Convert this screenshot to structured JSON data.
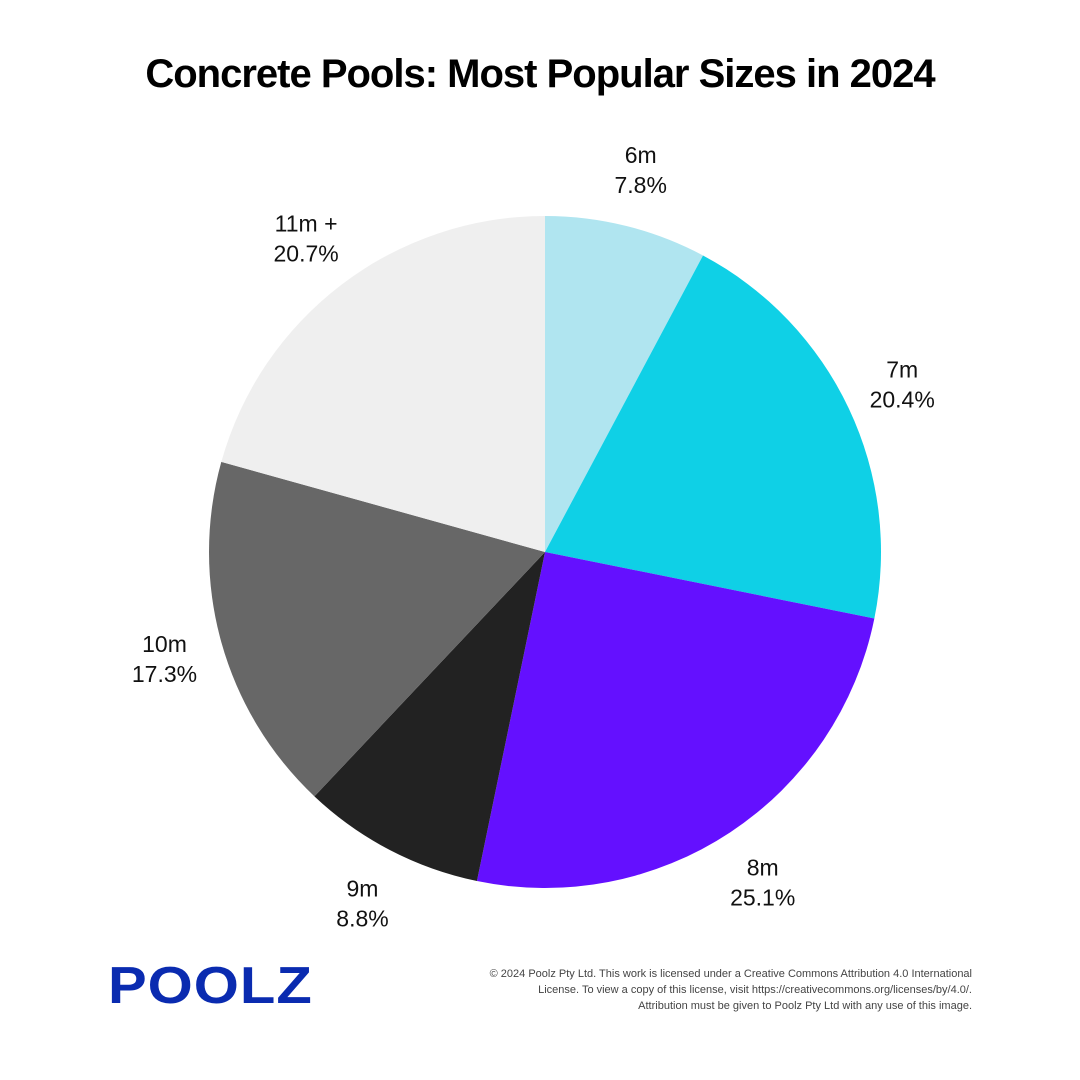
{
  "chart_data": {
    "type": "pie",
    "title": "Concrete Pools: Most Popular Sizes in 2024",
    "slices": [
      {
        "label": "6m",
        "value": 7.8,
        "value_label": "7.8%",
        "color": "#b0e5f0"
      },
      {
        "label": "7m",
        "value": 20.4,
        "value_label": "20.4%",
        "color": "#0fd0e6"
      },
      {
        "label": "8m",
        "value": 25.1,
        "value_label": "25.1%",
        "color": "#6410ff"
      },
      {
        "label": "9m",
        "value": 8.8,
        "value_label": "8.8%",
        "color": "#222222"
      },
      {
        "label": "10m",
        "value": 17.3,
        "value_label": "17.3%",
        "color": "#676767"
      },
      {
        "label": "11m +",
        "value": 20.7,
        "value_label": "20.7%",
        "color": "#efefef"
      }
    ],
    "start": "12 o'clock",
    "direction": "clockwise"
  },
  "footer": {
    "logo_text": "POOLZ",
    "logo_color": "#0a2bb0",
    "license_lines": [
      "© 2024 Poolz Pty Ltd. This work is licensed under a Creative Commons Attribution 4.0 International",
      "License. To view a copy of this license, visit https://creativecommons.org/licenses/by/4.0/.",
      "Attribution must be given to Poolz Pty Ltd with any use of this image."
    ]
  }
}
